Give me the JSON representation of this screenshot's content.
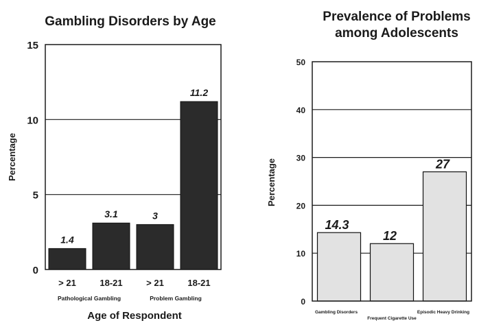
{
  "chart_data": [
    {
      "type": "bar",
      "title": "Gambling Disorders by Age",
      "xlabel": "Age of Respondent",
      "ylabel": "Percentage",
      "ylim": [
        0,
        15
      ],
      "yticks": [
        "0",
        "5",
        "10",
        "15"
      ],
      "categories": [
        "> 21",
        "18-21",
        "> 21",
        "18-21"
      ],
      "category_groups": [
        "Pathological Gambling",
        "Problem Gambling"
      ],
      "values": [
        1.4,
        3.1,
        3,
        11.2
      ],
      "value_labels": [
        "1.4",
        "3.1",
        "3",
        "11.2"
      ],
      "grid": true,
      "bar_color": "#2b2b2b"
    },
    {
      "type": "bar",
      "title_lines": [
        "Prevalence of Problems",
        "among Adolescents"
      ],
      "xlabel": "",
      "ylabel": "Percentage",
      "ylim": [
        0,
        50
      ],
      "yticks": [
        "0",
        "10",
        "20",
        "30",
        "40",
        "50"
      ],
      "categories": [
        "Gambling Disorders",
        "Frequent Cigarette Use",
        "Episodic Heavy Drinking"
      ],
      "values": [
        14.3,
        12,
        27
      ],
      "value_labels": [
        "14.3",
        "12",
        "27"
      ],
      "grid": true,
      "bar_color": "#e2e2e2"
    }
  ]
}
